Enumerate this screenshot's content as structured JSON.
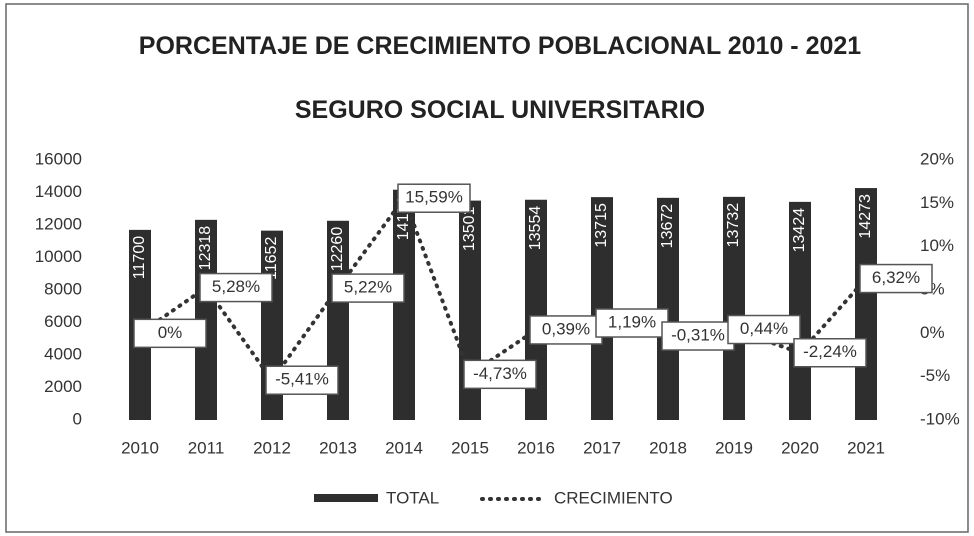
{
  "chart_data": {
    "type": "bar-line",
    "title": "PORCENTAJE DE CRECIMIENTO POBLACIONAL 2010 - 2021",
    "subtitle": "SEGURO SOCIAL UNIVERSITARIO",
    "categories": [
      "2010",
      "2011",
      "2012",
      "2013",
      "2014",
      "2015",
      "2016",
      "2017",
      "2018",
      "2019",
      "2020",
      "2021"
    ],
    "series": [
      {
        "name": "TOTAL",
        "type": "bar",
        "color": "#2e2e2e",
        "values": [
          11700,
          12318,
          11652,
          12260,
          14171,
          13501,
          13554,
          13715,
          13672,
          13732,
          13424,
          14273
        ]
      },
      {
        "name": "CRECIMIENTO",
        "type": "line",
        "axis": "y2",
        "color": "#333333",
        "values": [
          0,
          5.28,
          -5.41,
          5.22,
          15.59,
          -4.73,
          0.39,
          1.19,
          -0.31,
          0.44,
          -2.24,
          6.32
        ],
        "value_labels": [
          "0%",
          "5,28%",
          "-5,41%",
          "5,22%",
          "15,59%",
          "-4,73%",
          "0,39%",
          "1,19%",
          "-0,31%",
          "0,44%",
          "-2,24%",
          "6,32%"
        ]
      }
    ],
    "ylim": [
      0,
      16000
    ],
    "yticks": [
      0,
      2000,
      4000,
      6000,
      8000,
      10000,
      12000,
      14000,
      16000
    ],
    "y2lim": [
      -10,
      20
    ],
    "y2ticks": [
      {
        "value": -10,
        "label": "-10%"
      },
      {
        "value": -5,
        "label": "-5%"
      },
      {
        "value": 0,
        "label": "0%"
      },
      {
        "value": 5,
        "label": "5%"
      },
      {
        "value": 10,
        "label": "10%"
      },
      {
        "value": 15,
        "label": "15%"
      },
      {
        "value": 20,
        "label": "20%"
      }
    ],
    "legend": "bottom"
  }
}
